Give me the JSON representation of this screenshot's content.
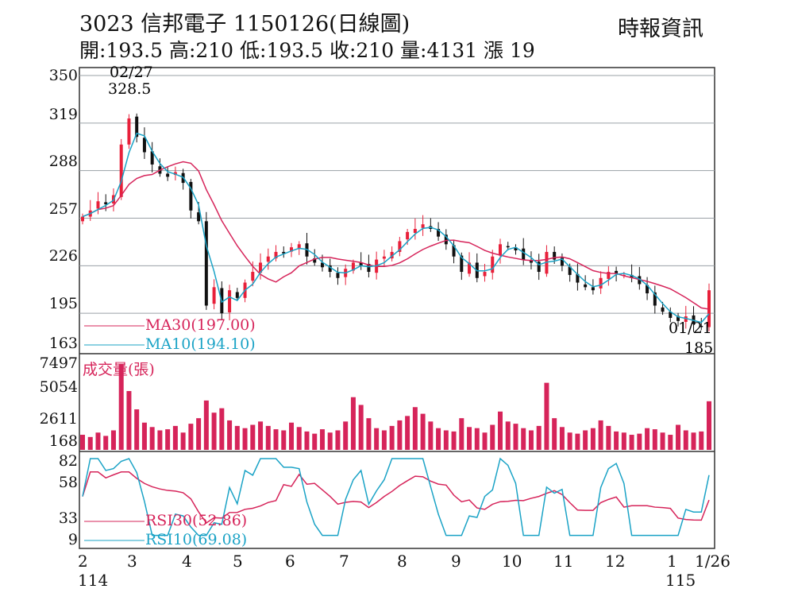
{
  "header": {
    "title": "3023  信邦電子 1150126(日線圖)",
    "ohlc": "開:193.5 高:210 低:193.5 收:210 量:4131 漲 19",
    "source": "時報資訊"
  },
  "chart_data": {
    "type": "candlestick",
    "price_axis": {
      "ticks": [
        "350",
        "319",
        "288",
        "257",
        "226",
        "195",
        "163"
      ],
      "values": [
        350,
        319,
        288,
        257,
        226,
        195,
        163
      ],
      "range": [
        163,
        350
      ]
    },
    "volume_axis": {
      "ticks": [
        "7497",
        "5054",
        "2611",
        "168"
      ],
      "values": [
        7497,
        5054,
        2611,
        168
      ],
      "label": "成交量(張)"
    },
    "rsi_axis": {
      "ticks": [
        "82",
        "58",
        "33",
        "9"
      ],
      "values": [
        82,
        58,
        33,
        9
      ]
    },
    "x_labels": [
      "2",
      "3",
      "4",
      "5",
      "6",
      "7",
      "8",
      "9",
      "10",
      "11",
      "12",
      "1",
      "1/26"
    ],
    "year_labels": [
      "114",
      "115"
    ],
    "annotations": {
      "high_date": "02/27",
      "high_value": "328.5",
      "low_date": "01/21",
      "low_value": "185"
    },
    "legend": {
      "ma30": "MA30(197.00)",
      "ma10": "MA10(194.10)",
      "rsi30": "RSI30(52.86)",
      "rsi10": "RSI10(69.08)"
    },
    "colors": {
      "up": "#e8203a",
      "down": "#111111",
      "ma30": "#d6245a",
      "ma10": "#1ba3c6",
      "volume": "#d6245a",
      "grid": "#9aa0a6"
    },
    "closes": [
      258,
      262,
      268,
      266,
      272,
      305,
      322,
      310,
      300,
      292,
      286,
      284,
      287,
      280,
      262,
      255,
      200,
      212,
      195,
      210,
      205,
      215,
      222,
      228,
      232,
      235,
      234,
      238,
      240,
      232,
      228,
      225,
      222,
      218,
      224,
      228,
      226,
      222,
      230,
      232,
      235,
      242,
      248,
      250,
      253,
      250,
      245,
      240,
      232,
      222,
      228,
      218,
      222,
      232,
      240,
      238,
      236,
      230,
      228,
      222,
      235,
      230,
      226,
      220,
      215,
      212,
      210,
      218,
      222,
      221,
      220,
      218,
      214,
      208,
      200,
      196,
      192,
      190,
      193,
      188,
      186,
      210
    ],
    "volumes": [
      1100,
      900,
      1300,
      1000,
      1500,
      7497,
      5054,
      3400,
      2200,
      1800,
      1500,
      1600,
      1900,
      1300,
      2100,
      2600,
      4200,
      3100,
      3500,
      2400,
      1900,
      1700,
      2000,
      2300,
      1900,
      1600,
      1500,
      2200,
      1800,
      1400,
      1200,
      1600,
      1300,
      1500,
      2300,
      4500,
      3800,
      2600,
      1700,
      1500,
      1900,
      2400,
      2800,
      3600,
      3000,
      2300,
      1700,
      1500,
      1400,
      2600,
      1800,
      1700,
      1300,
      2000,
      3200,
      2300,
      2100,
      1700,
      1500,
      1900,
      5800,
      2600,
      1800,
      1300,
      1200,
      1500,
      1700,
      2400,
      1900,
      1400,
      1300,
      1100,
      1200,
      1700,
      1600,
      1300,
      1100,
      2000,
      1500,
      1300,
      1400,
      4131
    ]
  }
}
